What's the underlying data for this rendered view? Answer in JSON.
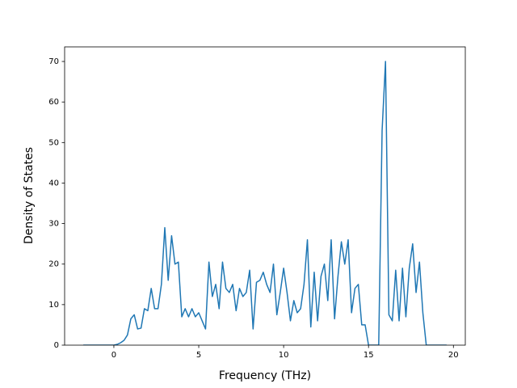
{
  "chart_data": {
    "type": "line",
    "x_label": "Frequency (THz)",
    "y_label": "Density of States",
    "x": [
      -1.8,
      -1.6,
      -1.4,
      -1.2,
      -1,
      -0.8,
      -0.6,
      -0.4,
      -0.2,
      0,
      0.2,
      0.4,
      0.6,
      0.8,
      1,
      1.2,
      1.4,
      1.6,
      1.8,
      2,
      2.2,
      2.4,
      2.6,
      2.8,
      3,
      3.2,
      3.4,
      3.6,
      3.8,
      4,
      4.2,
      4.4,
      4.6,
      4.8,
      5,
      5.2,
      5.4,
      5.6,
      5.8,
      6,
      6.2,
      6.4,
      6.6,
      6.8,
      7,
      7.2,
      7.4,
      7.6,
      7.8,
      8,
      8.2,
      8.4,
      8.6,
      8.8,
      9,
      9.2,
      9.4,
      9.6,
      9.8,
      10,
      10.2,
      10.4,
      10.6,
      10.8,
      11,
      11.2,
      11.4,
      11.6,
      11.8,
      12,
      12.2,
      12.4,
      12.6,
      12.8,
      13,
      13.2,
      13.4,
      13.6,
      13.8,
      14,
      14.2,
      14.4,
      14.6,
      14.8,
      15,
      15.2,
      15.4,
      15.6,
      15.8,
      16,
      16.2,
      16.4,
      16.6,
      16.8,
      17,
      17.2,
      17.4,
      17.6,
      17.8,
      18,
      18.2,
      18.4,
      18.6,
      18.8,
      19,
      19.2,
      19.4,
      19.6
    ],
    "series": [
      {
        "color": "#1f77b4",
        "values": [
          0,
          0,
          0,
          0,
          0,
          0,
          0,
          0,
          0,
          0,
          0.2,
          0.6,
          1.2,
          2.5,
          6.5,
          7.5,
          4,
          4.2,
          9,
          8.5,
          14,
          9,
          9,
          15,
          29,
          16,
          27,
          20,
          20.5,
          7,
          9,
          7,
          9,
          7,
          8,
          6,
          4,
          20.5,
          12,
          15,
          9,
          20.5,
          14,
          13,
          15,
          8.5,
          14,
          12,
          13,
          18.5,
          4,
          15.5,
          16,
          18,
          15,
          13,
          20,
          7.5,
          13,
          19,
          13,
          6,
          11,
          8,
          9,
          15,
          26,
          4.5,
          18,
          6,
          17,
          20,
          11,
          26,
          6.5,
          17,
          25.5,
          20,
          26,
          8,
          14,
          15,
          5,
          5,
          0,
          0,
          0,
          0,
          53,
          70,
          7.5,
          6,
          18.5,
          6,
          19,
          7,
          19,
          25,
          13,
          20.5,
          8,
          0,
          0,
          0,
          0,
          0,
          0,
          0
        ]
      }
    ],
    "xlim": [
      -2.9,
      20.7
    ],
    "ylim": [
      0,
      73.6
    ],
    "xticks": [
      0,
      5,
      10,
      15,
      20
    ],
    "yticks": [
      0,
      10,
      20,
      30,
      40,
      50,
      60,
      70
    ]
  }
}
